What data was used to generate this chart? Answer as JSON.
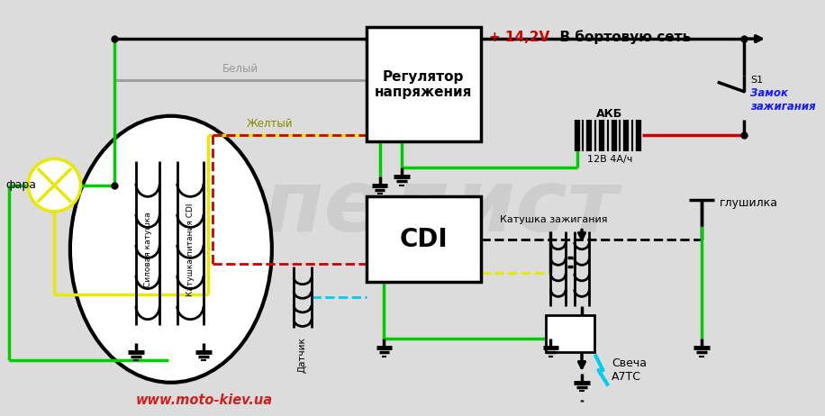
{
  "bg": "#dcdcdc",
  "black": "#000000",
  "white": "#ffffff",
  "red": "#cc0000",
  "green": "#00cc00",
  "yellow": "#e8e800",
  "gray": "#999999",
  "cyan": "#00ccee",
  "blue_text": "#1a1aff",
  "red_text": "#cc0000",
  "label_fara": "фара",
  "label_bely": "Белый",
  "label_zhyolty": "Желтый",
  "label_reg": "Регулятор\nнапряжения",
  "label_akb": "АКБ",
  "label_akb_spec": "12В 4А/ч",
  "label_zamok": "Замок\nзажигания",
  "label_zamok_s1": "S1",
  "label_glushilka": "глушилка",
  "label_cdi": "CDI",
  "label_datchik": "Датчик",
  "label_katushka_zazhig": "Катушка зажигания",
  "label_svecha": "Свеча\nА7ТС",
  "label_silovaya": "Силовая катушка",
  "label_katushka_pitania": "Катушка питания CDI",
  "label_voltage": "+ 14,2V",
  "label_network": "  В бортовую сеть",
  "label_web": "www.moto-kiev.ua"
}
